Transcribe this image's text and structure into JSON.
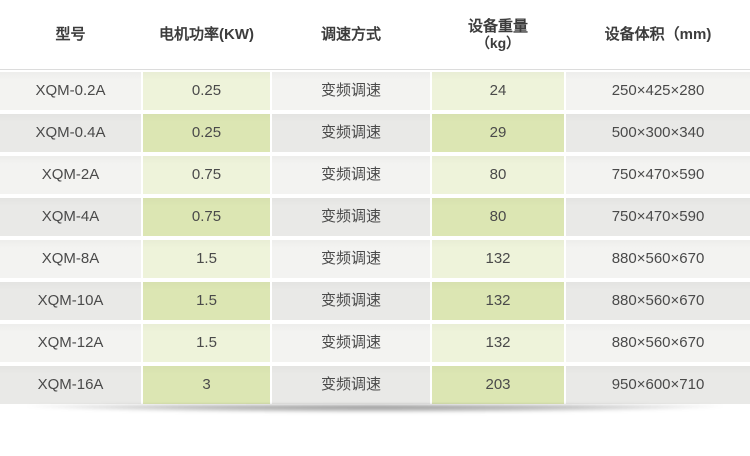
{
  "chart_data": {
    "type": "table",
    "title": "",
    "columns": [
      {
        "key": "model",
        "label": "型号"
      },
      {
        "key": "power",
        "label": "电机功率(KW)"
      },
      {
        "key": "speed",
        "label": "调速方式"
      },
      {
        "key": "weight",
        "label": "设备重量",
        "label_sub": "（kg）"
      },
      {
        "key": "volume",
        "label": "设备体积（mm)"
      }
    ],
    "rows": [
      [
        "XQM-0.2A",
        "0.25",
        "变频调速",
        "24",
        "250×425×280"
      ],
      [
        "XQM-0.4A",
        "0.25",
        "变频调速",
        "29",
        "500×300×340"
      ],
      [
        "XQM-2A",
        "0.75",
        "变频调速",
        "80",
        "750×470×590"
      ],
      [
        "XQM-4A",
        "0.75",
        "变频调速",
        "80",
        "750×470×590"
      ],
      [
        "XQM-8A",
        "1.5",
        "变频调速",
        "132",
        "880×560×670"
      ],
      [
        "XQM-10A",
        "1.5",
        "变频调速",
        "132",
        "880×560×670"
      ],
      [
        "XQM-12A",
        "1.5",
        "变频调速",
        "132",
        "880×560×670"
      ],
      [
        "XQM-16A",
        "3",
        "变频调速",
        "203",
        "950×600×710"
      ]
    ],
    "highlighted_columns": [
      "power",
      "weight"
    ]
  },
  "colors": {
    "row_light": "#f3f3f1",
    "row_dark": "#e9e9e7",
    "green_light": "#eef3da",
    "green_dark": "#dce6b3",
    "text": "#4a4a4a",
    "header_text": "#3c3c3c",
    "top_line": "#dcdcdc"
  }
}
